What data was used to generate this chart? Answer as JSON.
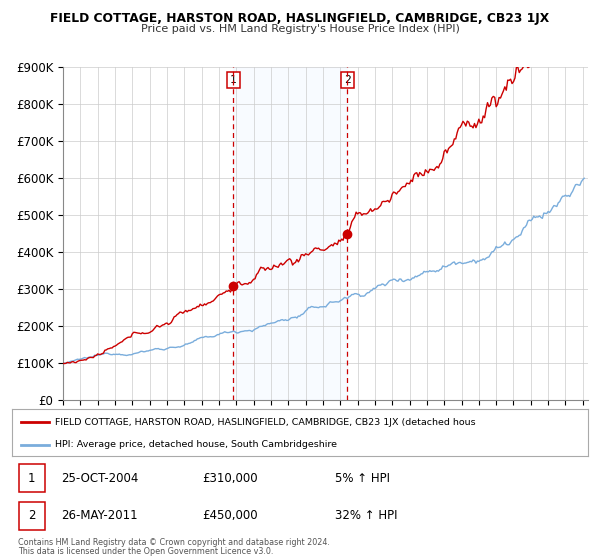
{
  "title": "FIELD COTTAGE, HARSTON ROAD, HASLINGFIELD, CAMBRIDGE, CB23 1JX",
  "subtitle": "Price paid vs. HM Land Registry's House Price Index (HPI)",
  "ylim": [
    0,
    900000
  ],
  "xlim_start": 1995.0,
  "xlim_end": 2025.3,
  "sale1_date": 2004.82,
  "sale1_price": 310000,
  "sale1_label": "1",
  "sale1_text": "25-OCT-2004",
  "sale1_amount": "£310,000",
  "sale1_hpi": "5% ↑ HPI",
  "sale2_date": 2011.4,
  "sale2_price": 450000,
  "sale2_label": "2",
  "sale2_text": "26-MAY-2011",
  "sale2_amount": "£450,000",
  "sale2_hpi": "32% ↑ HPI",
  "red_color": "#cc0000",
  "blue_color": "#7aaddc",
  "shade_color": "#ddeeff",
  "legend_label_red": "FIELD COTTAGE, HARSTON ROAD, HASLINGFIELD, CAMBRIDGE, CB23 1JX (detached hous",
  "legend_label_blue": "HPI: Average price, detached house, South Cambridgeshire",
  "footnote1": "Contains HM Land Registry data © Crown copyright and database right 2024.",
  "footnote2": "This data is licensed under the Open Government Licence v3.0."
}
